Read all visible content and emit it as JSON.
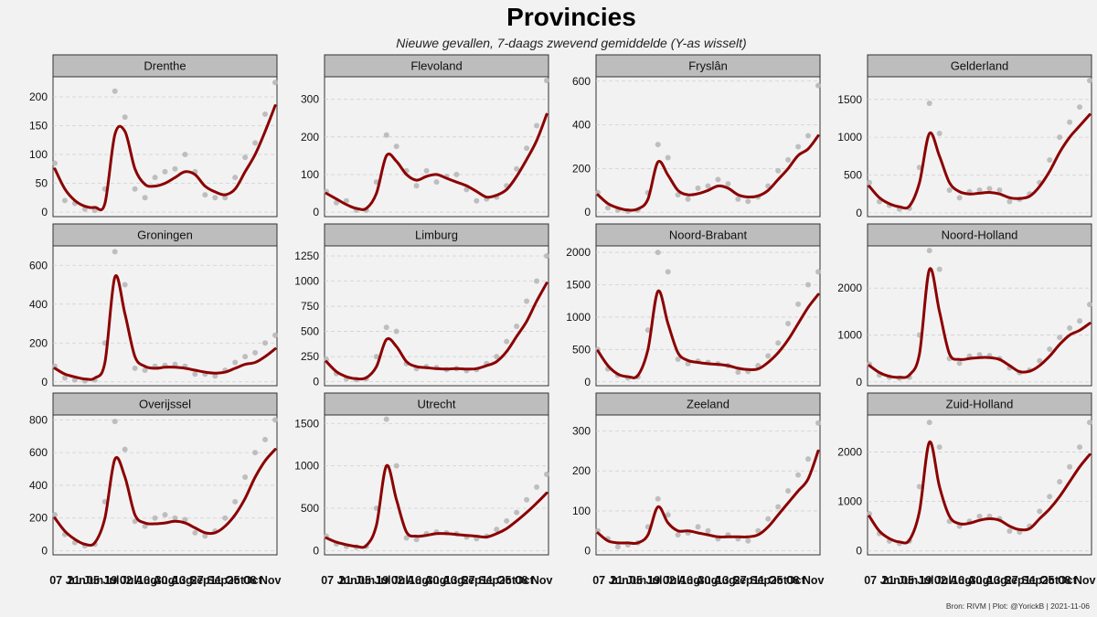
{
  "chart_data": {
    "type": "line",
    "title": "Provincies",
    "subtitle": "Nieuwe gevallen, 7-daags zwevend gemiddelde  (Y-as wisselt)",
    "caption": "Bron: RIVM | Plot: @YorickB |  2021-11-06",
    "x_tick_labels": [
      "07 Jun",
      "21 Jun",
      "05 Jul",
      "19 Jul",
      "02 Aug",
      "16 Aug",
      "30 Aug",
      "13 Sep",
      "27 Sep",
      "11 Oct",
      "25 Oct",
      "08 Nov"
    ],
    "x": [
      0,
      7,
      14,
      21,
      28,
      35,
      42,
      49,
      56,
      63,
      70,
      77,
      84,
      91,
      98,
      105,
      112,
      119,
      126,
      133,
      140,
      147,
      154
    ],
    "x_range": [
      0,
      154
    ],
    "grid": "horizontal",
    "colors": {
      "line": "#8b0000",
      "points": "#b8b8b8",
      "strip": "#bdbdbd",
      "panel": "#f2f2f2"
    },
    "panels": [
      {
        "name": "Drenthe",
        "yticks": [
          0,
          50,
          100,
          150,
          200
        ],
        "ylim": [
          -8,
          235
        ],
        "values": [
          75,
          40,
          20,
          10,
          8,
          15,
          135,
          140,
          75,
          48,
          45,
          50,
          60,
          70,
          65,
          45,
          35,
          30,
          40,
          70,
          100,
          140,
          185
        ],
        "points": [
          85,
          20,
          15,
          5,
          3,
          40,
          210,
          165,
          40,
          25,
          60,
          70,
          75,
          100,
          70,
          30,
          25,
          25,
          60,
          95,
          120,
          170,
          225
        ]
      },
      {
        "name": "Flevoland",
        "yticks": [
          0,
          100,
          200,
          300
        ],
        "ylim": [
          -12,
          360
        ],
        "values": [
          50,
          35,
          20,
          10,
          10,
          50,
          150,
          135,
          100,
          85,
          95,
          100,
          90,
          80,
          70,
          55,
          40,
          45,
          60,
          95,
          140,
          190,
          260
        ],
        "points": [
          55,
          25,
          30,
          5,
          5,
          80,
          205,
          175,
          110,
          70,
          110,
          80,
          95,
          100,
          60,
          30,
          35,
          40,
          70,
          115,
          170,
          230,
          350
        ]
      },
      {
        "name": "Fryslân",
        "yticks": [
          0,
          200,
          400,
          600
        ],
        "ylim": [
          -20,
          620
        ],
        "values": [
          80,
          40,
          20,
          10,
          15,
          60,
          230,
          170,
          100,
          80,
          85,
          100,
          120,
          110,
          80,
          70,
          75,
          100,
          150,
          200,
          260,
          290,
          350
        ],
        "points": [
          90,
          20,
          10,
          5,
          10,
          90,
          310,
          250,
          80,
          60,
          110,
          120,
          150,
          130,
          60,
          50,
          70,
          120,
          190,
          240,
          300,
          350,
          580
        ]
      },
      {
        "name": "Gelderland",
        "yticks": [
          0,
          500,
          1000,
          1500
        ],
        "ylim": [
          -50,
          1800
        ],
        "values": [
          350,
          200,
          120,
          80,
          90,
          400,
          1050,
          750,
          400,
          280,
          250,
          260,
          270,
          250,
          200,
          190,
          220,
          350,
          550,
          800,
          1000,
          1150,
          1300
        ],
        "points": [
          400,
          150,
          100,
          50,
          60,
          600,
          1450,
          1050,
          300,
          200,
          280,
          300,
          320,
          300,
          150,
          180,
          250,
          400,
          700,
          1000,
          1200,
          1400,
          1750
        ]
      },
      {
        "name": "Groningen",
        "yticks": [
          0,
          200,
          400,
          600
        ],
        "ylim": [
          -20,
          700
        ],
        "values": [
          70,
          40,
          25,
          15,
          20,
          100,
          540,
          350,
          130,
          80,
          70,
          75,
          75,
          70,
          60,
          50,
          45,
          50,
          70,
          90,
          100,
          130,
          170
        ],
        "points": [
          80,
          20,
          10,
          5,
          10,
          200,
          670,
          500,
          70,
          60,
          80,
          85,
          90,
          80,
          40,
          40,
          30,
          60,
          100,
          130,
          150,
          200,
          240
        ]
      },
      {
        "name": "Limburg",
        "yticks": [
          0,
          250,
          500,
          750,
          1000,
          1250
        ],
        "ylim": [
          -40,
          1350
        ],
        "values": [
          200,
          100,
          50,
          30,
          40,
          150,
          420,
          350,
          200,
          150,
          140,
          130,
          125,
          130,
          125,
          130,
          160,
          200,
          300,
          450,
          600,
          800,
          980
        ],
        "points": [
          220,
          80,
          30,
          20,
          30,
          250,
          540,
          500,
          180,
          130,
          150,
          140,
          120,
          130,
          110,
          120,
          180,
          250,
          400,
          550,
          800,
          1000,
          1250
        ]
      },
      {
        "name": "Noord-Brabant",
        "yticks": [
          0,
          500,
          1000,
          1500,
          2000
        ],
        "ylim": [
          -60,
          2100
        ],
        "values": [
          480,
          250,
          120,
          80,
          100,
          500,
          1400,
          900,
          450,
          330,
          300,
          280,
          270,
          250,
          210,
          190,
          200,
          300,
          450,
          650,
          900,
          1150,
          1350
        ],
        "points": [
          500,
          200,
          100,
          60,
          80,
          800,
          2000,
          1700,
          350,
          280,
          320,
          300,
          280,
          250,
          150,
          160,
          250,
          400,
          600,
          900,
          1200,
          1500,
          1700
        ]
      },
      {
        "name": "Noord-Holland",
        "yticks": [
          0,
          1000,
          2000
        ],
        "ylim": [
          -80,
          2900
        ],
        "values": [
          350,
          200,
          120,
          100,
          150,
          600,
          2400,
          1500,
          600,
          480,
          500,
          520,
          520,
          480,
          350,
          220,
          230,
          350,
          550,
          800,
          1000,
          1100,
          1250
        ],
        "points": [
          380,
          150,
          100,
          80,
          100,
          1000,
          2800,
          2400,
          500,
          400,
          550,
          580,
          560,
          500,
          300,
          200,
          250,
          450,
          700,
          950,
          1150,
          1300,
          1650
        ]
      },
      {
        "name": "Overijssel",
        "yticks": [
          0,
          200,
          400,
          600,
          800
        ],
        "ylim": [
          -25,
          830
        ],
        "values": [
          200,
          120,
          70,
          40,
          50,
          200,
          560,
          450,
          220,
          170,
          165,
          170,
          180,
          170,
          140,
          110,
          110,
          150,
          220,
          320,
          450,
          550,
          620
        ],
        "points": [
          220,
          100,
          50,
          30,
          40,
          300,
          790,
          620,
          180,
          150,
          200,
          220,
          200,
          190,
          110,
          90,
          120,
          200,
          300,
          450,
          600,
          680,
          800
        ]
      },
      {
        "name": "Utrecht",
        "yticks": [
          0,
          500,
          1000,
          1500
        ],
        "ylim": [
          -50,
          1600
        ],
        "values": [
          150,
          100,
          70,
          50,
          60,
          300,
          1000,
          600,
          220,
          170,
          180,
          200,
          200,
          190,
          180,
          170,
          160,
          200,
          260,
          350,
          450,
          560,
          680
        ],
        "points": [
          170,
          80,
          50,
          40,
          50,
          500,
          1550,
          1000,
          150,
          130,
          200,
          220,
          210,
          200,
          160,
          140,
          170,
          250,
          350,
          450,
          600,
          750,
          900
        ]
      },
      {
        "name": "Zeeland",
        "yticks": [
          0,
          100,
          200,
          300
        ],
        "ylim": [
          -10,
          340
        ],
        "values": [
          45,
          25,
          20,
          20,
          20,
          40,
          110,
          70,
          50,
          50,
          45,
          40,
          35,
          35,
          35,
          35,
          40,
          60,
          90,
          120,
          150,
          180,
          250
        ],
        "points": [
          50,
          30,
          10,
          15,
          20,
          60,
          130,
          90,
          40,
          45,
          60,
          50,
          30,
          40,
          30,
          25,
          50,
          80,
          110,
          150,
          190,
          230,
          320
        ]
      },
      {
        "name": "Zuid-Holland",
        "yticks": [
          0,
          1000,
          2000
        ],
        "ylim": [
          -80,
          2750
        ],
        "values": [
          700,
          400,
          250,
          180,
          220,
          800,
          2200,
          1300,
          700,
          550,
          560,
          620,
          650,
          620,
          500,
          430,
          450,
          650,
          850,
          1100,
          1400,
          1700,
          1950
        ],
        "points": [
          750,
          350,
          200,
          150,
          200,
          1300,
          2600,
          2100,
          600,
          500,
          600,
          700,
          700,
          650,
          400,
          380,
          500,
          800,
          1100,
          1400,
          1700,
          2100,
          2600
        ]
      }
    ]
  }
}
